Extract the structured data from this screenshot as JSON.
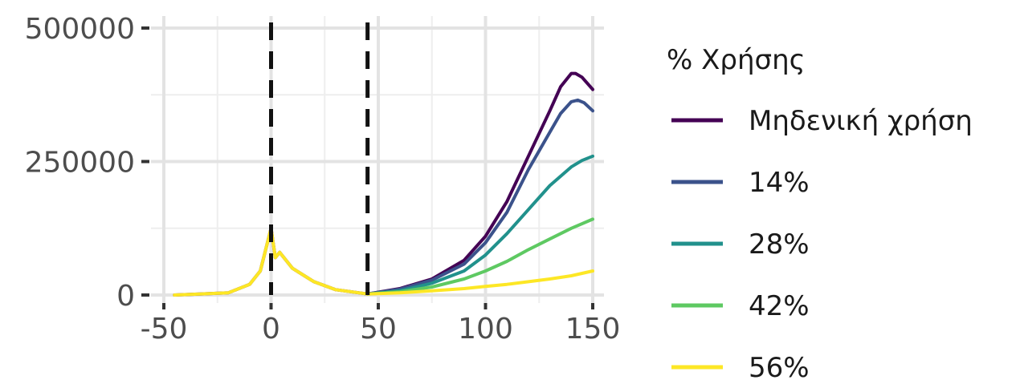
{
  "chart_data": {
    "type": "line",
    "title": "",
    "xlabel": "",
    "ylabel": "",
    "xlim": [
      -50,
      150
    ],
    "ylim": [
      0,
      500000
    ],
    "x_ticks": [
      -50,
      0,
      50,
      100,
      150
    ],
    "x_tick_labels": [
      "-50",
      "0",
      "50",
      "100",
      "150"
    ],
    "y_ticks": [
      0,
      250000,
      500000
    ],
    "y_tick_labels": [
      "0",
      "250000",
      "500000"
    ],
    "grid": true,
    "vertical_lines": [
      0,
      45
    ],
    "legend": {
      "title": "% Χρήσης",
      "placement": "right"
    },
    "series": [
      {
        "name": "Μηδενική χρήση",
        "color": "#440154",
        "x": [
          -45,
          -20,
          -10,
          -5,
          0,
          2,
          4,
          10,
          20,
          30,
          45,
          60,
          75,
          90,
          100,
          110,
          120,
          130,
          135,
          140,
          142,
          145,
          150
        ],
        "y": [
          0,
          4000,
          20000,
          45000,
          125000,
          70000,
          80000,
          50000,
          25000,
          10000,
          2000,
          12000,
          30000,
          65000,
          110000,
          175000,
          260000,
          345000,
          390000,
          415000,
          415000,
          408000,
          385000
        ]
      },
      {
        "name": "14%",
        "color": "#3b528b",
        "x": [
          45,
          60,
          75,
          90,
          100,
          110,
          120,
          130,
          135,
          140,
          143,
          146,
          150
        ],
        "y": [
          2000,
          11000,
          28000,
          58000,
          98000,
          155000,
          235000,
          305000,
          340000,
          362000,
          365000,
          360000,
          345000
        ]
      },
      {
        "name": "28%",
        "color": "#21918c",
        "x": [
          45,
          60,
          75,
          90,
          100,
          110,
          120,
          130,
          140,
          145,
          150
        ],
        "y": [
          2000,
          8000,
          22000,
          45000,
          75000,
          115000,
          160000,
          205000,
          240000,
          252000,
          260000
        ]
      },
      {
        "name": "42%",
        "color": "#5ec962",
        "x": [
          45,
          60,
          75,
          90,
          100,
          110,
          120,
          130,
          140,
          150
        ],
        "y": [
          2000,
          6000,
          15000,
          30000,
          45000,
          63000,
          85000,
          105000,
          125000,
          142000
        ]
      },
      {
        "name": "56%",
        "color": "#fde725",
        "x": [
          -45,
          -20,
          -10,
          -5,
          0,
          2,
          4,
          10,
          20,
          30,
          45,
          60,
          75,
          90,
          100,
          110,
          120,
          130,
          140,
          150
        ],
        "y": [
          0,
          4000,
          20000,
          45000,
          125000,
          70000,
          80000,
          50000,
          25000,
          10000,
          2000,
          4000,
          8000,
          12000,
          16000,
          20000,
          25000,
          30000,
          36000,
          45000
        ]
      }
    ]
  }
}
